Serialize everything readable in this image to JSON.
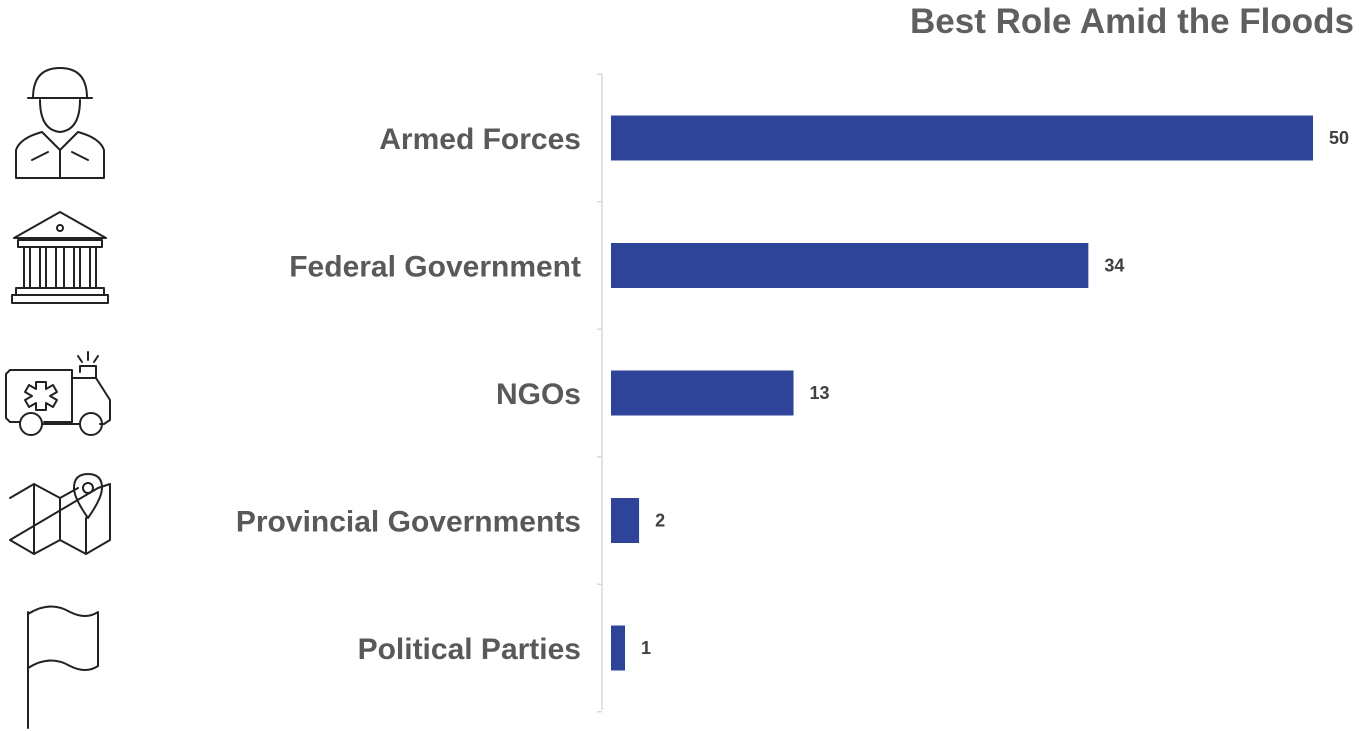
{
  "chart_data": {
    "type": "bar",
    "orientation": "horizontal",
    "title": "Best Role Amid the Floods",
    "categories": [
      "Armed Forces",
      "Federal Government",
      "NGOs",
      "Provincial Governments",
      "Political Parties"
    ],
    "values": [
      50,
      34,
      13,
      2,
      1
    ],
    "icons": [
      "soldier-icon",
      "government-building-icon",
      "ambulance-icon",
      "map-pin-icon",
      "flag-icon"
    ],
    "bar_color": "#2e4499",
    "grid": false,
    "legend": "none"
  }
}
